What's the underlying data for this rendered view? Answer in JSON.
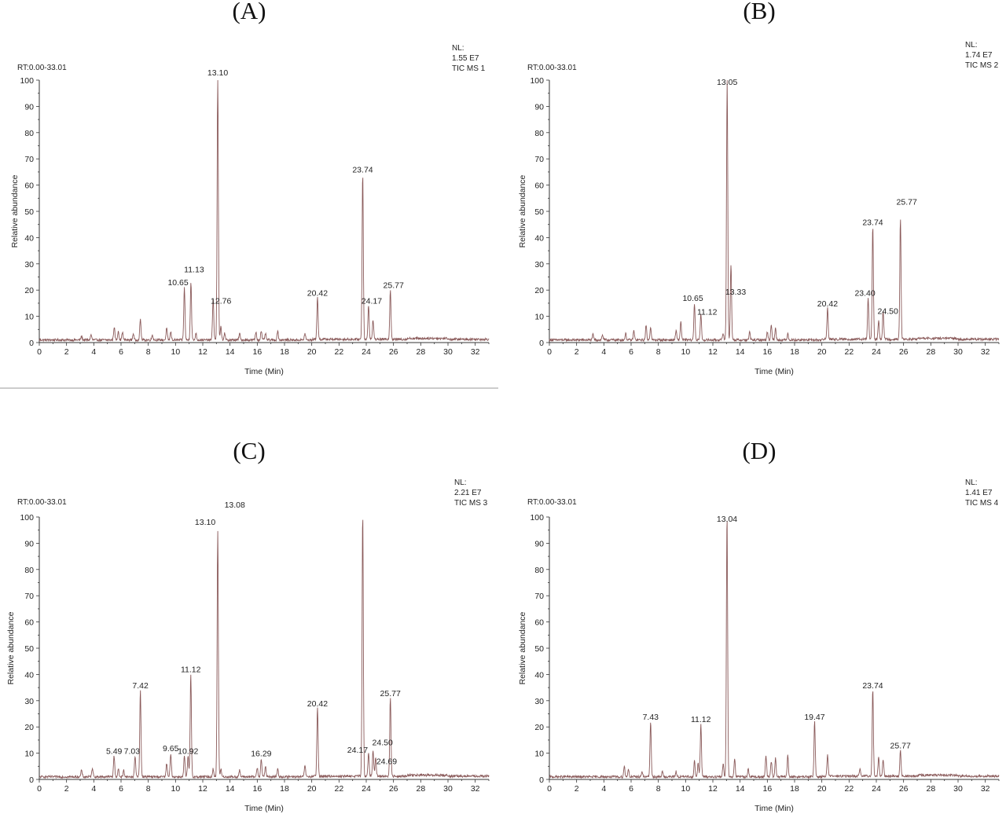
{
  "chart_data": [
    {
      "type": "line",
      "panel_label": "(A)",
      "range_text": "RT:0.00-33.01",
      "info_lines": [
        "NL:",
        "1.55 E7",
        "TIC  MS 1"
      ],
      "xlabel": "Time (Min)",
      "ylabel": "Relative abundance",
      "xlim": [
        0,
        33
      ],
      "ylim": [
        0,
        100
      ],
      "xticks": [
        0,
        2,
        4,
        6,
        8,
        10,
        12,
        14,
        16,
        18,
        20,
        22,
        24,
        26,
        28,
        30,
        32
      ],
      "yticks": [
        0,
        10,
        20,
        30,
        40,
        50,
        60,
        70,
        80,
        90,
        100
      ],
      "line_color": "#8a5a5a",
      "peaks": [
        {
          "x": 13.1,
          "y": 100,
          "label": "13.10"
        },
        {
          "x": 23.74,
          "y": 63,
          "label": "23.74"
        },
        {
          "x": 11.13,
          "y": 22,
          "label": "11.13"
        },
        {
          "x": 10.65,
          "y": 20,
          "label": "10.65"
        },
        {
          "x": 12.76,
          "y": 16,
          "label": "12.76"
        },
        {
          "x": 20.42,
          "y": 16,
          "label": "20.42"
        },
        {
          "x": 25.77,
          "y": 19,
          "label": "25.77"
        },
        {
          "x": 24.17,
          "y": 13,
          "label": "24.17"
        }
      ],
      "minor_peaks": [
        [
          3.1,
          1.5
        ],
        [
          3.8,
          2
        ],
        [
          5.5,
          5
        ],
        [
          5.8,
          3.5
        ],
        [
          6.1,
          3
        ],
        [
          6.9,
          2.5
        ],
        [
          7.42,
          8
        ],
        [
          8.3,
          2
        ],
        [
          9.35,
          4.5
        ],
        [
          9.65,
          3
        ],
        [
          11.5,
          2.5
        ],
        [
          13.33,
          5
        ],
        [
          13.6,
          2.5
        ],
        [
          14.7,
          2.5
        ],
        [
          15.9,
          3
        ],
        [
          16.29,
          3.5
        ],
        [
          16.6,
          2.5
        ],
        [
          17.5,
          3.5
        ],
        [
          19.5,
          2.5
        ],
        [
          24.5,
          7.5
        ]
      ]
    },
    {
      "type": "line",
      "panel_label": "(B)",
      "range_text": "RT:0.00-33.01",
      "info_lines": [
        "NL:",
        "1.74 E7",
        "TIC  MS 2"
      ],
      "xlabel": "Time (Min)",
      "ylabel": "Relative abundance",
      "xlim": [
        0,
        33
      ],
      "ylim": [
        0,
        100
      ],
      "xticks": [
        0,
        2,
        4,
        6,
        8,
        10,
        12,
        14,
        16,
        18,
        20,
        22,
        24,
        26,
        28,
        30,
        32
      ],
      "yticks": [
        0,
        10,
        20,
        30,
        40,
        50,
        60,
        70,
        80,
        90,
        100
      ],
      "line_color": "#8a5a5a",
      "peaks": [
        {
          "x": 13.05,
          "y": 100,
          "label": "13.05"
        },
        {
          "x": 25.77,
          "y": 46,
          "label": "25.77"
        },
        {
          "x": 23.74,
          "y": 43,
          "label": "23.74"
        },
        {
          "x": 13.33,
          "y": 29,
          "label": "13.33"
        },
        {
          "x": 10.65,
          "y": 14,
          "label": "10.65"
        },
        {
          "x": 11.12,
          "y": 10,
          "label": "11.12"
        },
        {
          "x": 20.42,
          "y": 12,
          "label": "20.42"
        },
        {
          "x": 23.4,
          "y": 16,
          "label": "23.40"
        },
        {
          "x": 24.5,
          "y": 11,
          "label": "24.50"
        }
      ],
      "minor_peaks": [
        [
          3.2,
          2
        ],
        [
          3.9,
          2
        ],
        [
          5.6,
          2.5
        ],
        [
          6.2,
          3.5
        ],
        [
          7.1,
          5.5
        ],
        [
          7.43,
          5
        ],
        [
          9.3,
          3.5
        ],
        [
          9.65,
          7
        ],
        [
          12.76,
          2.5
        ],
        [
          14.7,
          3
        ],
        [
          16.0,
          3
        ],
        [
          16.29,
          6
        ],
        [
          16.6,
          4.5
        ],
        [
          17.5,
          2.5
        ],
        [
          24.17,
          7
        ]
      ]
    },
    {
      "type": "line",
      "panel_label": "(C)",
      "range_text": "RT:0.00-33.01",
      "info_lines": [
        "NL:",
        "2.21 E7",
        "TIC  MS 3"
      ],
      "xlabel": "Time (Min)",
      "ylabel": "Relative abundance",
      "xlim": [
        0,
        33
      ],
      "ylim": [
        0,
        100
      ],
      "xticks": [
        0,
        2,
        4,
        6,
        8,
        10,
        12,
        14,
        16,
        18,
        20,
        22,
        24,
        26,
        28,
        30,
        32
      ],
      "yticks": [
        0,
        10,
        20,
        30,
        40,
        50,
        60,
        70,
        80,
        90,
        100
      ],
      "line_color": "#8a5a5a",
      "peaks": [
        {
          "x": 13.1,
          "y": 94,
          "label": "13.10"
        },
        {
          "x": 13.08,
          "y": 0,
          "label": "13.08"
        },
        {
          "x": 23.74,
          "y": 100,
          "label": ""
        },
        {
          "x": 7.42,
          "y": 33,
          "label": "7.42"
        },
        {
          "x": 11.12,
          "y": 39,
          "label": "11.12"
        },
        {
          "x": 20.42,
          "y": 26,
          "label": "20.42"
        },
        {
          "x": 25.77,
          "y": 30,
          "label": "25.77"
        },
        {
          "x": 5.49,
          "y": 8,
          "label": "5.49"
        },
        {
          "x": 7.03,
          "y": 8,
          "label": "7.03"
        },
        {
          "x": 9.65,
          "y": 9,
          "label": "9.65"
        },
        {
          "x": 10.92,
          "y": 8,
          "label": "10.92"
        },
        {
          "x": 16.29,
          "y": 7,
          "label": "16.29"
        },
        {
          "x": 24.17,
          "y": 9,
          "label": "24.17"
        },
        {
          "x": 24.5,
          "y": 10,
          "label": "24.50"
        },
        {
          "x": 24.69,
          "y": 7,
          "label": "24.69"
        }
      ],
      "minor_peaks": [
        [
          3.1,
          2.5
        ],
        [
          3.9,
          3.5
        ],
        [
          5.8,
          3
        ],
        [
          6.2,
          2.5
        ],
        [
          9.35,
          5
        ],
        [
          10.65,
          8
        ],
        [
          12.76,
          3
        ],
        [
          13.33,
          3
        ],
        [
          14.7,
          2.5
        ],
        [
          16.0,
          3.5
        ],
        [
          16.6,
          4
        ],
        [
          17.5,
          3
        ],
        [
          19.5,
          4.5
        ]
      ]
    },
    {
      "type": "line",
      "panel_label": "(D)",
      "range_text": "RT:0.00-33.01",
      "info_lines": [
        "NL:",
        "1.41 E7",
        "TIC  MS 4"
      ],
      "xlabel": "Time (Min)",
      "ylabel": "Relative abundance",
      "xlim": [
        0,
        33
      ],
      "ylim": [
        0,
        100
      ],
      "xticks": [
        0,
        2,
        4,
        6,
        8,
        10,
        12,
        14,
        16,
        18,
        20,
        22,
        24,
        26,
        28,
        30,
        32
      ],
      "yticks": [
        0,
        10,
        20,
        30,
        40,
        50,
        60,
        70,
        80,
        90,
        100
      ],
      "line_color": "#8a5a5a",
      "peaks": [
        {
          "x": 13.04,
          "y": 100,
          "label": "13.04"
        },
        {
          "x": 23.74,
          "y": 33,
          "label": "23.74"
        },
        {
          "x": 7.43,
          "y": 21,
          "label": "7.43"
        },
        {
          "x": 11.12,
          "y": 20,
          "label": "11.12"
        },
        {
          "x": 19.47,
          "y": 21,
          "label": "19.47"
        },
        {
          "x": 25.77,
          "y": 10,
          "label": "25.77"
        }
      ],
      "minor_peaks": [
        [
          5.5,
          4
        ],
        [
          5.8,
          3
        ],
        [
          6.8,
          2
        ],
        [
          8.3,
          2
        ],
        [
          9.3,
          2
        ],
        [
          10.65,
          6
        ],
        [
          10.92,
          5
        ],
        [
          12.76,
          5
        ],
        [
          13.6,
          7
        ],
        [
          14.6,
          3
        ],
        [
          15.9,
          8
        ],
        [
          16.29,
          6
        ],
        [
          16.6,
          7
        ],
        [
          17.5,
          8
        ],
        [
          20.42,
          8
        ],
        [
          22.8,
          2.5
        ],
        [
          24.17,
          7
        ],
        [
          24.5,
          6.5
        ]
      ]
    }
  ]
}
